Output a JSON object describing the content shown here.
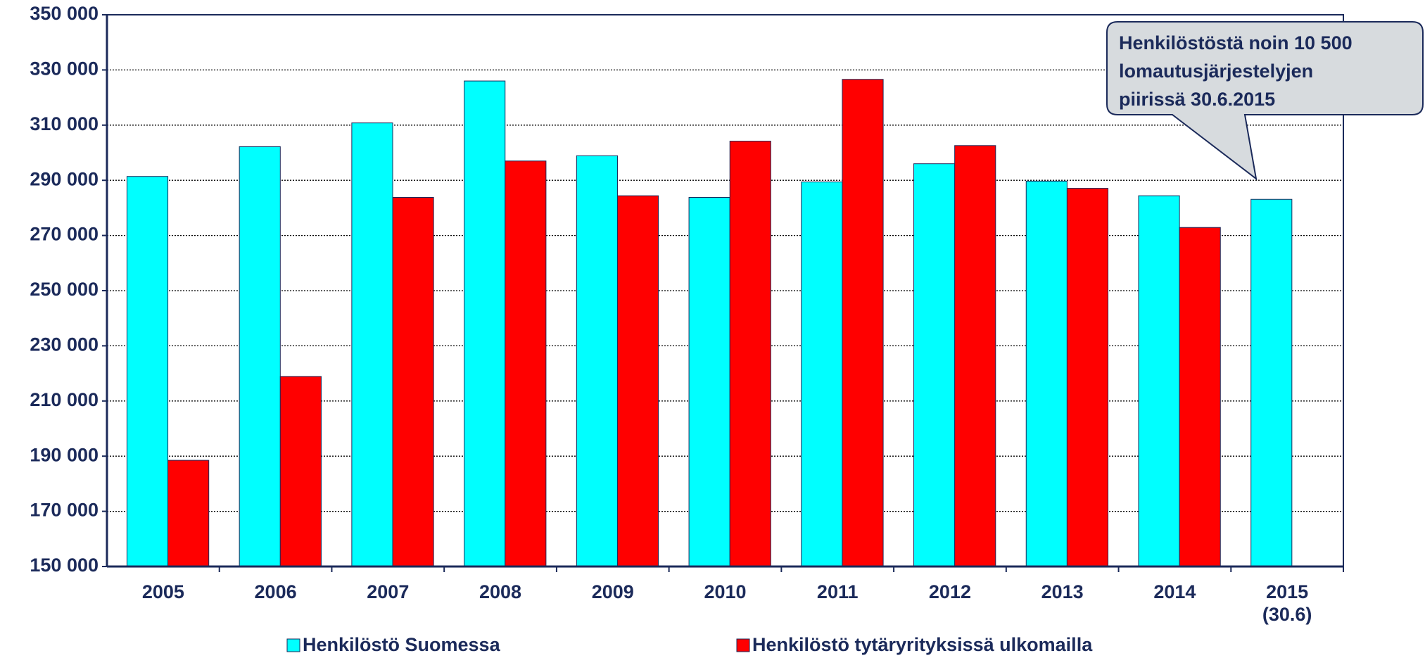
{
  "chart_data": {
    "type": "bar",
    "categories": [
      "2005",
      "2006",
      "2007",
      "2008",
      "2009",
      "2010",
      "2011",
      "2012",
      "2013",
      "2014",
      "2015\n(30.6)"
    ],
    "series": [
      {
        "name": "Henkilöstö Suomessa",
        "color": "#00ffff",
        "values": [
          291400,
          302200,
          310800,
          326000,
          298900,
          283800,
          289400,
          296000,
          289700,
          284400,
          283100
        ]
      },
      {
        "name": "Henkilöstö tytäryrityksissä ulkomailla",
        "color": "#ff0000",
        "values": [
          188500,
          218900,
          283800,
          297000,
          284400,
          304200,
          326600,
          302600,
          287100,
          272900,
          null
        ]
      }
    ],
    "ylim": [
      150000,
      350000
    ],
    "yticks": [
      {
        "value": 150000,
        "label": "150 000"
      },
      {
        "value": 170000,
        "label": "170 000"
      },
      {
        "value": 190000,
        "label": "190 000"
      },
      {
        "value": 210000,
        "label": "210 000"
      },
      {
        "value": 230000,
        "label": "230 000"
      },
      {
        "value": 250000,
        "label": "250 000"
      },
      {
        "value": 270000,
        "label": "270 000"
      },
      {
        "value": 290000,
        "label": "290 000"
      },
      {
        "value": 310000,
        "label": "310 000"
      },
      {
        "value": 330000,
        "label": "330 000"
      },
      {
        "value": 350000,
        "label": "350 000"
      }
    ],
    "grid": true,
    "legend": "bottom",
    "annotation": [
      "Henkilöstöstä noin 10 500",
      "lomautusjärjestelyjen",
      "piirissä  30.6.2015"
    ]
  }
}
